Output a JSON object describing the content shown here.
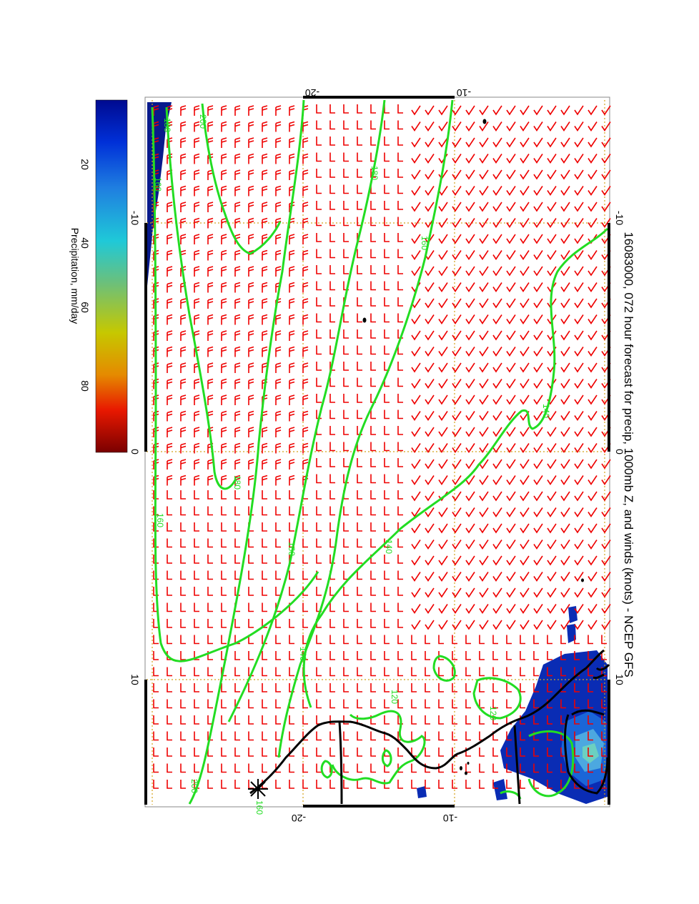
{
  "title": "16083000, 072 hour forecast for precip, 1000mb Z, and winds (knots) - NCEP GFS",
  "colorbar": {
    "label": "Precipitation, mm/day",
    "ticks": [
      "20",
      "40",
      "60",
      "80"
    ],
    "colors": [
      "#000a90",
      "#0030d8",
      "#1f7fe0",
      "#1fc9d8",
      "#6cc07a",
      "#c6c800",
      "#e58a00",
      "#e81800",
      "#7a0000"
    ]
  },
  "axes": {
    "left_ticks": [
      "-20",
      "-10"
    ],
    "right_ticks": [
      "-20",
      "-10"
    ],
    "top_ticks": [
      "-10",
      "0",
      "10"
    ],
    "bottom_ticks": [
      "-10",
      "0",
      "10"
    ]
  },
  "contour_labels": [
    "200",
    "180",
    "160",
    "180",
    "160",
    "160",
    "140",
    "140",
    "120",
    "120",
    "180",
    "160",
    "140",
    "200",
    "160"
  ],
  "colors": {
    "contour": "#22dd22",
    "wind_barb": "#ee0000",
    "coastline": "#000000",
    "grid": "#d4a21a"
  }
}
